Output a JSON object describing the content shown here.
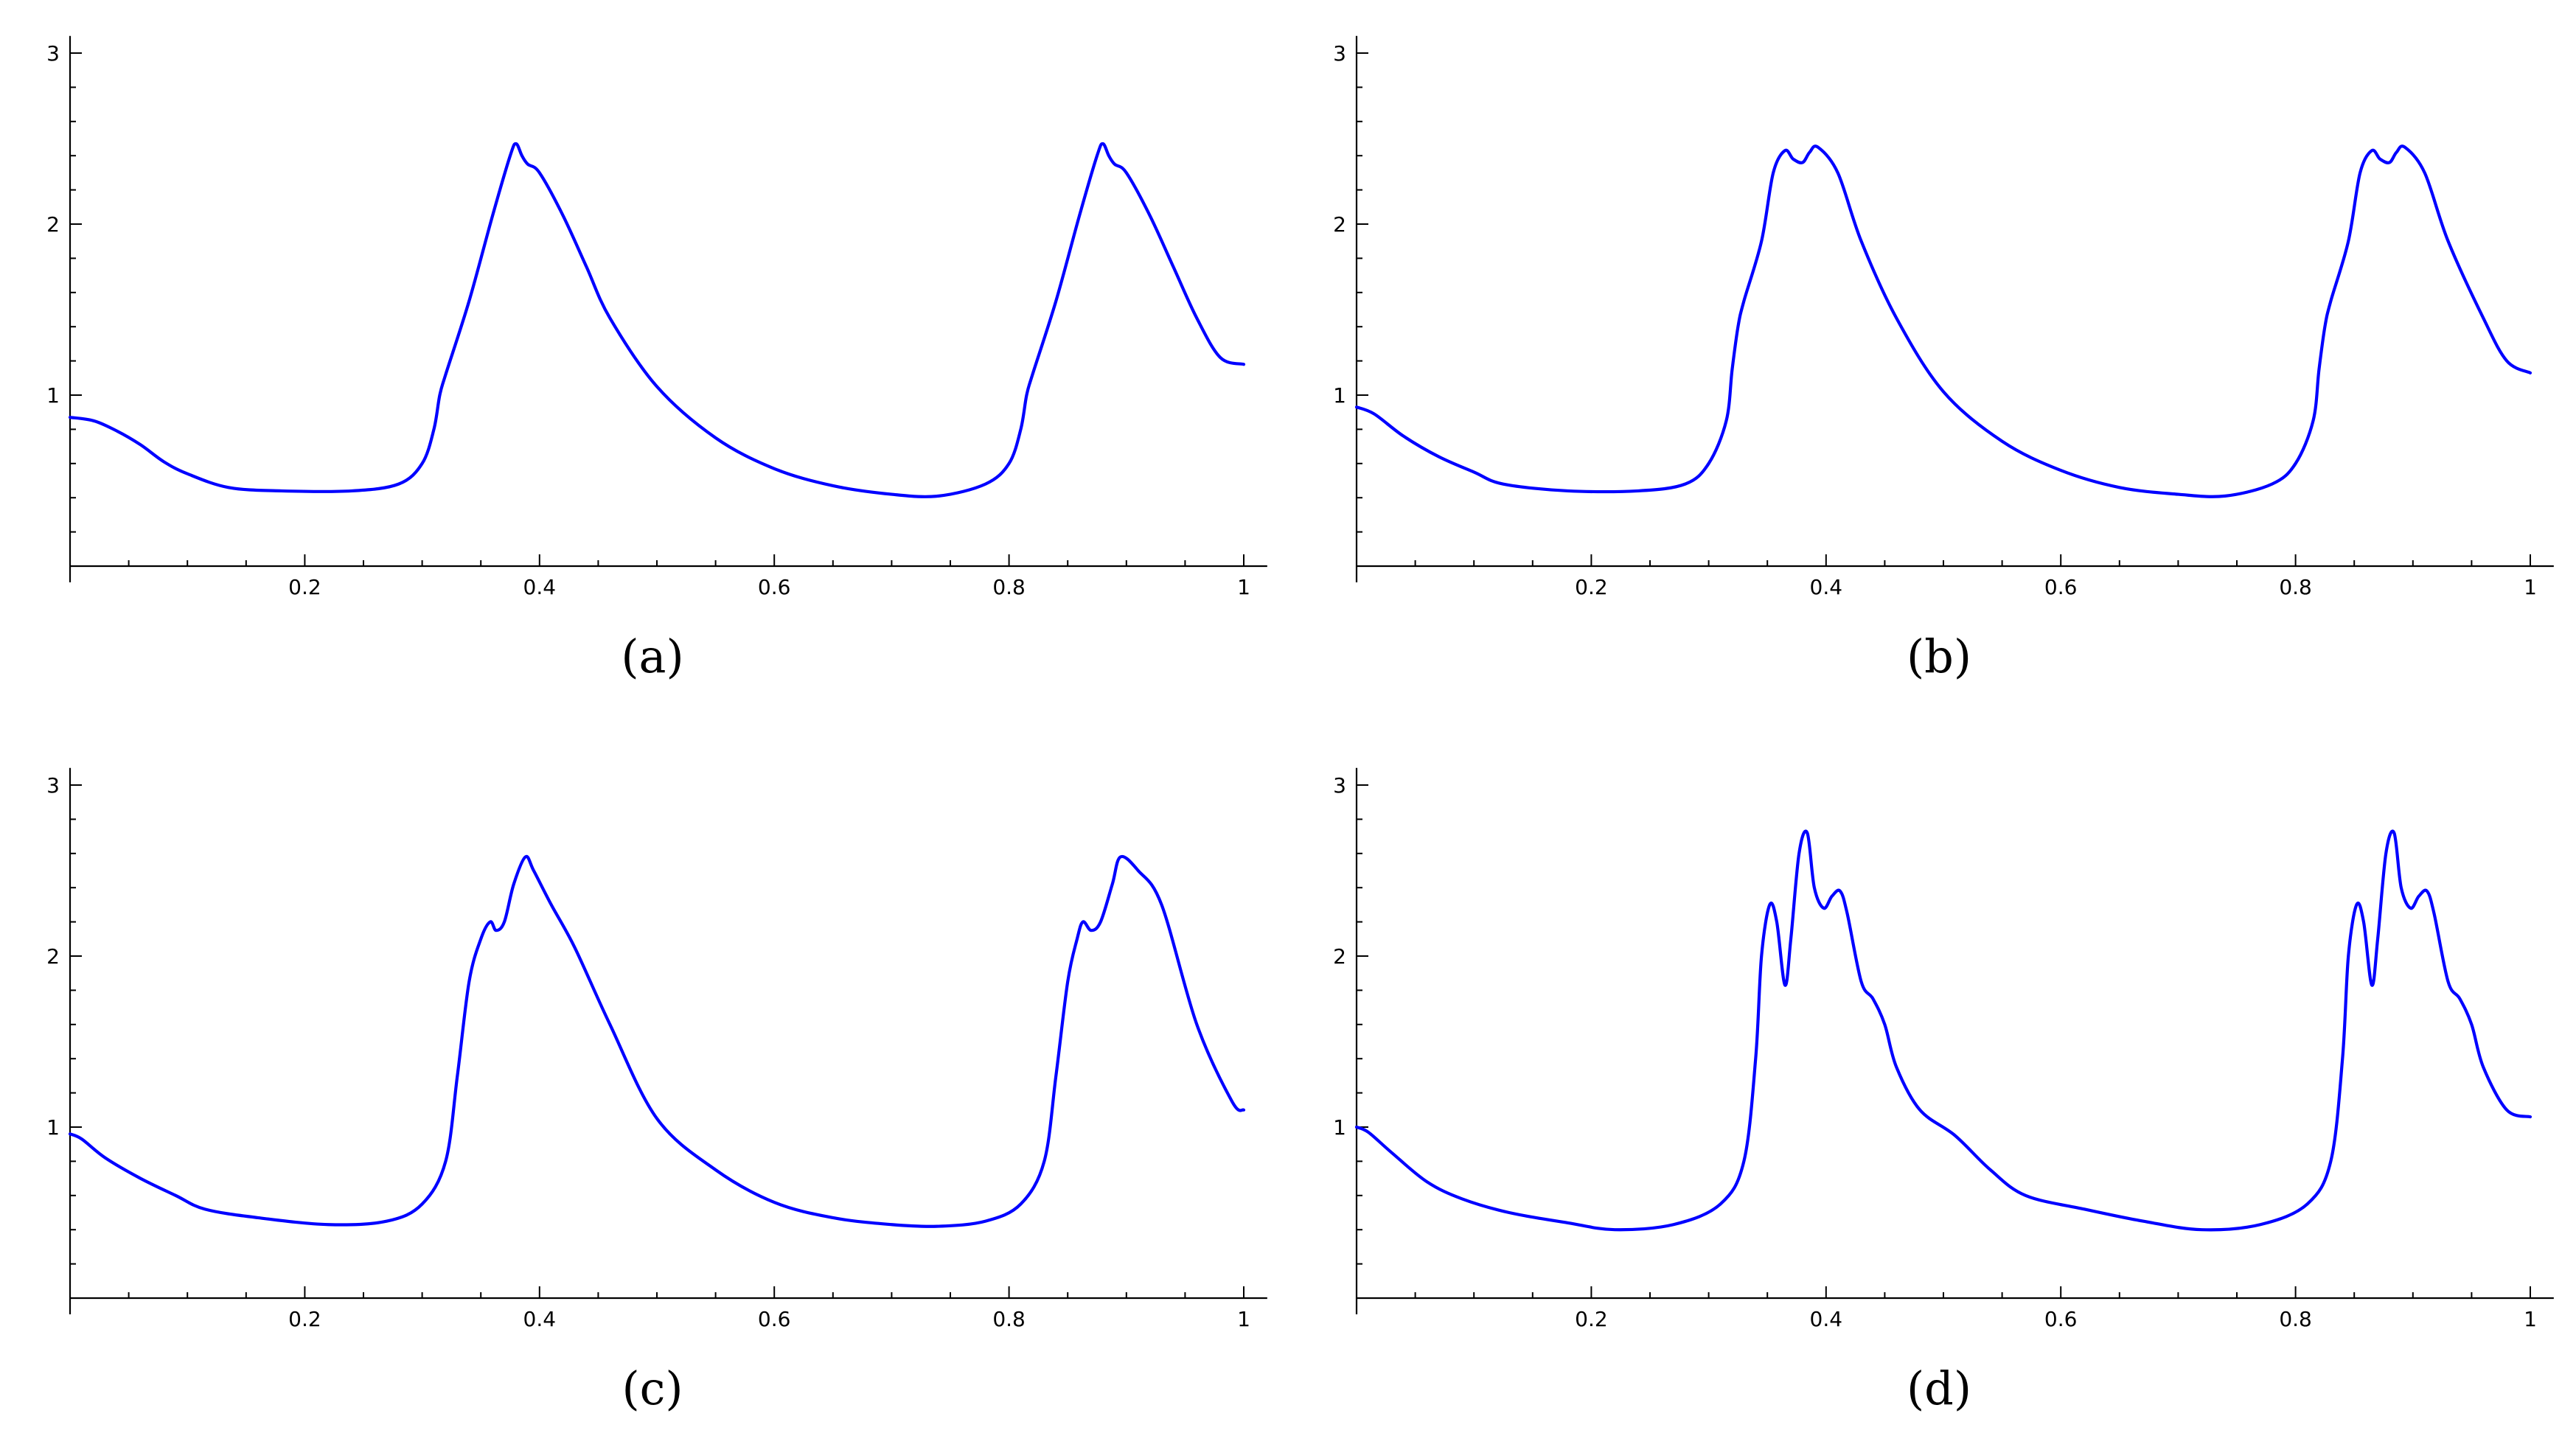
{
  "colors": {
    "line": "#0000ff",
    "axis": "#000000",
    "background": "#ffffff"
  },
  "panels": [
    {
      "label": "(a)",
      "letter": "a"
    },
    {
      "label": "(b)",
      "letter": "b"
    },
    {
      "label": "(c)",
      "letter": "c"
    },
    {
      "label": "(d)",
      "letter": "d"
    }
  ],
  "chart_data": [
    {
      "type": "line",
      "title": "",
      "xlabel": "",
      "ylabel": "",
      "xlim": [
        0,
        1.02
      ],
      "ylim": [
        -0.1,
        3.1
      ],
      "grid": false,
      "xticks": [
        0.2,
        0.4,
        0.6,
        0.8,
        1
      ],
      "xtick_labels": [
        "0.2",
        "0.4",
        "0.6",
        "0.8",
        "1"
      ],
      "yticks": [
        1,
        2,
        3
      ],
      "ytick_labels": [
        "1",
        "2",
        "3"
      ],
      "series": [
        {
          "x": [
            0,
            0.02,
            0.04,
            0.06,
            0.08,
            0.1,
            0.135,
            0.18,
            0.24,
            0.28,
            0.3,
            0.31,
            0.315,
            0.32,
            0.34,
            0.36,
            0.375,
            0.38,
            0.385,
            0.39,
            0.4,
            0.42,
            0.44,
            0.46,
            0.5,
            0.55,
            0.6,
            0.65,
            0.7,
            0.74,
            0.78,
            0.8,
            0.81,
            0.815,
            0.82,
            0.84,
            0.86,
            0.875,
            0.88,
            0.885,
            0.89,
            0.9,
            0.92,
            0.94,
            0.96,
            0.98,
            1.0
          ],
          "y": [
            0.87,
            0.85,
            0.79,
            0.71,
            0.61,
            0.54,
            0.46,
            0.44,
            0.44,
            0.48,
            0.6,
            0.8,
            1.0,
            1.12,
            1.55,
            2.05,
            2.4,
            2.47,
            2.4,
            2.35,
            2.3,
            2.05,
            1.75,
            1.45,
            1.05,
            0.75,
            0.57,
            0.47,
            0.42,
            0.41,
            0.48,
            0.6,
            0.8,
            1.0,
            1.12,
            1.55,
            2.05,
            2.4,
            2.47,
            2.4,
            2.35,
            2.3,
            2.05,
            1.75,
            1.45,
            1.22,
            1.18
          ]
        }
      ]
    },
    {
      "type": "line",
      "title": "",
      "xlabel": "",
      "ylabel": "",
      "xlim": [
        0,
        1.02
      ],
      "ylim": [
        -0.1,
        3.1
      ],
      "grid": false,
      "xticks": [
        0.2,
        0.4,
        0.6,
        0.8,
        1
      ],
      "xtick_labels": [
        "0.2",
        "0.4",
        "0.6",
        "0.8",
        "1"
      ],
      "yticks": [
        1,
        2,
        3
      ],
      "ytick_labels": [
        "1",
        "2",
        "3"
      ],
      "series": [
        {
          "x": [
            0,
            0.015,
            0.04,
            0.07,
            0.1,
            0.125,
            0.18,
            0.24,
            0.28,
            0.3,
            0.315,
            0.32,
            0.325,
            0.33,
            0.345,
            0.355,
            0.365,
            0.372,
            0.38,
            0.386,
            0.393,
            0.41,
            0.43,
            0.46,
            0.5,
            0.55,
            0.6,
            0.65,
            0.7,
            0.74,
            0.78,
            0.8,
            0.815,
            0.82,
            0.825,
            0.83,
            0.845,
            0.855,
            0.865,
            0.872,
            0.88,
            0.886,
            0.893,
            0.91,
            0.93,
            0.96,
            0.98,
            1.0
          ],
          "y": [
            0.93,
            0.89,
            0.76,
            0.64,
            0.55,
            0.48,
            0.44,
            0.44,
            0.48,
            0.6,
            0.85,
            1.15,
            1.4,
            1.55,
            1.9,
            2.3,
            2.43,
            2.38,
            2.36,
            2.42,
            2.45,
            2.3,
            1.9,
            1.45,
            1.02,
            0.73,
            0.56,
            0.46,
            0.42,
            0.41,
            0.48,
            0.6,
            0.85,
            1.15,
            1.4,
            1.55,
            1.9,
            2.3,
            2.43,
            2.38,
            2.36,
            2.42,
            2.45,
            2.3,
            1.9,
            1.45,
            1.2,
            1.13
          ]
        }
      ]
    },
    {
      "type": "line",
      "title": "",
      "xlabel": "",
      "ylabel": "",
      "xlim": [
        0,
        1.02
      ],
      "ylim": [
        -0.1,
        3.1
      ],
      "grid": false,
      "xticks": [
        0.2,
        0.4,
        0.6,
        0.8,
        1
      ],
      "xtick_labels": [
        "0.2",
        "0.4",
        "0.6",
        "0.8",
        "1"
      ],
      "yticks": [
        1,
        2,
        3
      ],
      "ytick_labels": [
        "1",
        "2",
        "3"
      ],
      "series": [
        {
          "x": [
            0,
            0.01,
            0.03,
            0.06,
            0.09,
            0.115,
            0.16,
            0.22,
            0.27,
            0.3,
            0.32,
            0.33,
            0.34,
            0.35,
            0.358,
            0.363,
            0.37,
            0.378,
            0.388,
            0.395,
            0.41,
            0.43,
            0.46,
            0.5,
            0.55,
            0.6,
            0.65,
            0.7,
            0.74,
            0.78,
            0.81,
            0.83,
            0.84,
            0.85,
            0.858,
            0.863,
            0.87,
            0.878,
            0.888,
            0.895,
            0.91,
            0.93,
            0.96,
            0.99,
            1.0
          ],
          "y": [
            0.96,
            0.93,
            0.82,
            0.7,
            0.6,
            0.52,
            0.47,
            0.43,
            0.45,
            0.55,
            0.8,
            1.3,
            1.85,
            2.1,
            2.2,
            2.15,
            2.2,
            2.42,
            2.58,
            2.5,
            2.3,
            2.05,
            1.6,
            1.05,
            0.75,
            0.56,
            0.47,
            0.43,
            0.42,
            0.45,
            0.55,
            0.8,
            1.3,
            1.85,
            2.1,
            2.2,
            2.15,
            2.2,
            2.42,
            2.58,
            2.5,
            2.3,
            1.6,
            1.15,
            1.1
          ]
        }
      ]
    },
    {
      "type": "line",
      "title": "",
      "xlabel": "",
      "ylabel": "",
      "xlim": [
        0,
        1.02
      ],
      "ylim": [
        -0.1,
        3.1
      ],
      "grid": false,
      "xticks": [
        0.2,
        0.4,
        0.6,
        0.8,
        1
      ],
      "xtick_labels": [
        "0.2",
        "0.4",
        "0.6",
        "0.8",
        "1"
      ],
      "yticks": [
        1,
        2,
        3
      ],
      "ytick_labels": [
        "1",
        "2",
        "3"
      ],
      "series": [
        {
          "x": [
            0,
            0.01,
            0.03,
            0.06,
            0.09,
            0.13,
            0.18,
            0.22,
            0.27,
            0.31,
            0.33,
            0.34,
            0.345,
            0.352,
            0.358,
            0.365,
            0.37,
            0.377,
            0.384,
            0.39,
            0.398,
            0.405,
            0.412,
            0.418,
            0.43,
            0.44,
            0.45,
            0.46,
            0.48,
            0.51,
            0.54,
            0.57,
            0.62,
            0.67,
            0.72,
            0.77,
            0.81,
            0.83,
            0.84,
            0.845,
            0.852,
            0.858,
            0.865,
            0.87,
            0.877,
            0.884,
            0.89,
            0.898,
            0.905,
            0.912,
            0.918,
            0.93,
            0.94,
            0.95,
            0.96,
            0.98,
            1.0
          ],
          "y": [
            1.0,
            0.97,
            0.85,
            0.68,
            0.58,
            0.5,
            0.44,
            0.4,
            0.43,
            0.55,
            0.8,
            1.4,
            2.0,
            2.3,
            2.2,
            1.83,
            2.1,
            2.6,
            2.72,
            2.4,
            2.28,
            2.35,
            2.38,
            2.25,
            1.85,
            1.75,
            1.6,
            1.35,
            1.1,
            0.95,
            0.75,
            0.6,
            0.52,
            0.45,
            0.4,
            0.43,
            0.55,
            0.8,
            1.4,
            2.0,
            2.3,
            2.2,
            1.83,
            2.1,
            2.6,
            2.72,
            2.4,
            2.28,
            2.35,
            2.38,
            2.25,
            1.85,
            1.75,
            1.6,
            1.35,
            1.1,
            1.06
          ]
        }
      ]
    }
  ]
}
